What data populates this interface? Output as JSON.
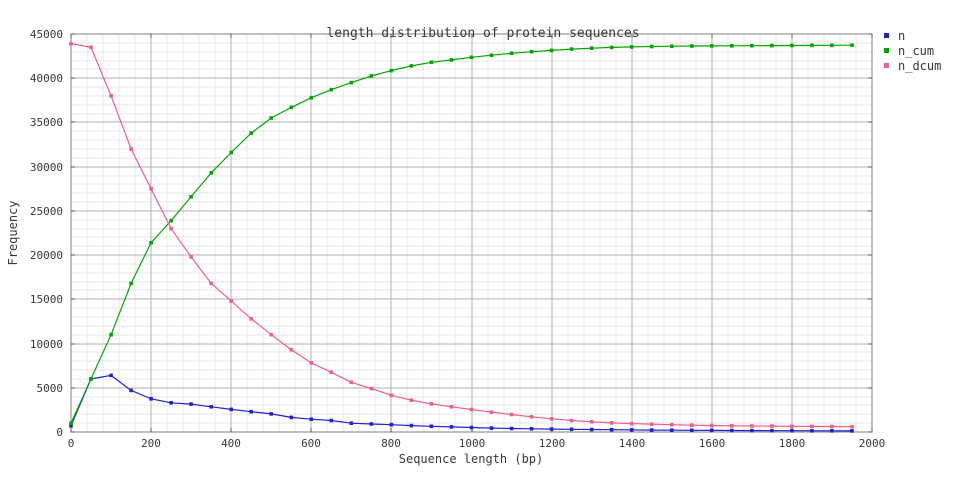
{
  "chart_data": {
    "type": "line",
    "title": "length distribution of protein sequences",
    "xlabel": "Sequence length (bp)",
    "ylabel": "Frequency",
    "xlim": [
      0,
      2000
    ],
    "ylim": [
      0,
      45000
    ],
    "xtick_step": 200,
    "ytick_step": 5000,
    "minor_x_step": 40,
    "minor_y_step": 1000,
    "grid": true,
    "legend_position": "outside-top-right",
    "marker": "filled-square",
    "x": [
      0,
      50,
      100,
      150,
      200,
      250,
      300,
      350,
      400,
      450,
      500,
      550,
      600,
      650,
      700,
      750,
      800,
      850,
      900,
      950,
      1000,
      1050,
      1100,
      1150,
      1200,
      1250,
      1300,
      1350,
      1400,
      1450,
      1500,
      1550,
      1600,
      1650,
      1700,
      1750,
      1800,
      1850,
      1900,
      1950
    ],
    "series": [
      {
        "name": "n",
        "color": "#2222cc",
        "values": [
          700,
          6000,
          6400,
          4700,
          3750,
          3300,
          3150,
          2850,
          2550,
          2300,
          2050,
          1650,
          1450,
          1300,
          1000,
          900,
          820,
          720,
          640,
          580,
          510,
          440,
          400,
          360,
          330,
          300,
          280,
          260,
          240,
          220,
          200,
          190,
          180,
          170,
          160,
          150,
          145,
          140,
          135,
          130
        ]
      },
      {
        "name": "n_cum",
        "color": "#00a500",
        "values": [
          1000,
          6000,
          11000,
          16800,
          21400,
          23900,
          26600,
          29300,
          31600,
          33800,
          35500,
          36700,
          37800,
          38700,
          39500,
          40260,
          40860,
          41390,
          41800,
          42070,
          42360,
          42600,
          42815,
          43000,
          43150,
          43290,
          43400,
          43480,
          43540,
          43590,
          43620,
          43640,
          43655,
          43670,
          43680,
          43690,
          43700,
          43710,
          43720,
          43730
        ]
      },
      {
        "name": "n_dcum",
        "color": "#ee5f8e",
        "values": [
          43900,
          43500,
          38000,
          32000,
          27500,
          23000,
          19800,
          16800,
          14800,
          12800,
          11000,
          9310,
          7810,
          6750,
          5620,
          4910,
          4155,
          3590,
          3180,
          2845,
          2540,
          2235,
          1975,
          1715,
          1490,
          1300,
          1150,
          1030,
          950,
          880,
          820,
          770,
          730,
          700,
          680,
          665,
          650,
          635,
          620,
          600
        ]
      }
    ],
    "grid_colors": {
      "major": "#b0b0b0",
      "minor": "#e7e7e7",
      "border": "#808080"
    }
  }
}
